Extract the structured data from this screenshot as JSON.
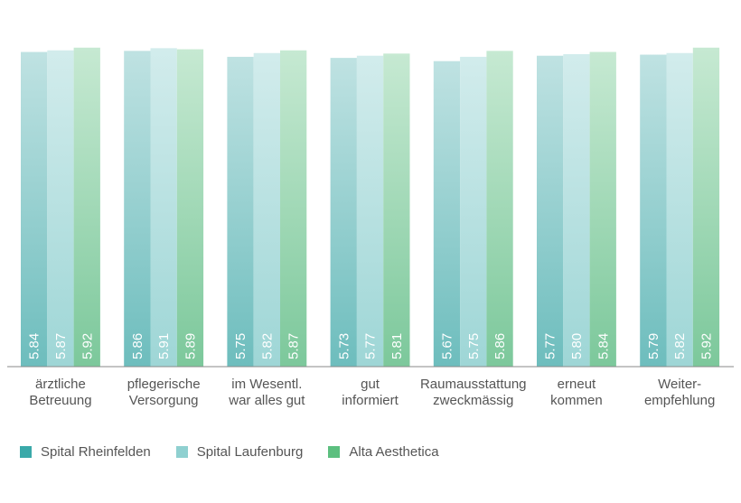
{
  "chart_data": {
    "type": "bar",
    "categories": [
      [
        "ärztliche",
        "Betreuung"
      ],
      [
        "pflegerische",
        "Versorgung"
      ],
      [
        "im Wesentl.",
        "war alles gut"
      ],
      [
        "gut",
        "informiert"
      ],
      [
        "Raumausstattung",
        "zweckmässig"
      ],
      [
        "erneut",
        "kommen"
      ],
      [
        "Weiter-",
        "empfehlung"
      ]
    ],
    "series": [
      {
        "name": "Spital Rheinfelden",
        "color": "#5bb5b5",
        "values": [
          5.84,
          5.86,
          5.75,
          5.73,
          5.67,
          5.77,
          5.79
        ]
      },
      {
        "name": "Spital Laufenburg",
        "color": "#8fd0d0",
        "values": [
          5.87,
          5.91,
          5.82,
          5.77,
          5.75,
          5.8,
          5.82
        ]
      },
      {
        "name": "Alta Aesthetica",
        "color": "#6cc08e",
        "values": [
          5.92,
          5.89,
          5.87,
          5.81,
          5.86,
          5.84,
          5.92
        ]
      }
    ],
    "ylim": [
      0,
      6
    ],
    "grid": false,
    "legend_position": "bottom-left",
    "value_labels": "vertical-inside-bottom"
  }
}
